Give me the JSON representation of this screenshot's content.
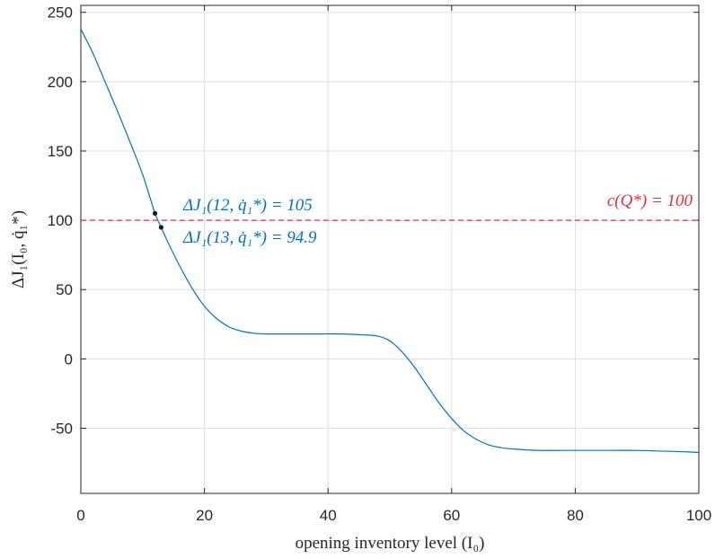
{
  "chart_data": {
    "type": "line",
    "title": "",
    "xlabel": "opening inventory level (I₀)",
    "ylabel": "ΔJ₁(I₀, q̇₁*)",
    "xlim": [
      0,
      100
    ],
    "ylim": [
      -97,
      255
    ],
    "xticks": [
      0,
      20,
      40,
      60,
      80,
      100
    ],
    "yticks": [
      -50,
      0,
      50,
      100,
      150,
      200,
      250
    ],
    "xtick_labels": [
      "0",
      "20",
      "40",
      "60",
      "80",
      "100"
    ],
    "ytick_labels": [
      "-50",
      "0",
      "50",
      "100",
      "150",
      "200",
      "250"
    ],
    "grid": true,
    "series": [
      {
        "color": "#0072bd",
        "x": [
          0,
          2,
          4,
          6,
          8,
          10,
          12,
          13,
          14,
          16,
          18,
          20,
          22,
          24,
          26,
          28,
          30,
          34,
          38,
          42,
          45,
          48,
          50,
          52,
          54,
          56,
          58,
          60,
          62,
          64,
          66,
          68,
          70,
          74,
          78,
          82,
          86,
          90,
          94,
          98,
          100
        ],
        "y": [
          238,
          220,
          199,
          178,
          156,
          133,
          105,
          94.9,
          85,
          67,
          51,
          38,
          29,
          23,
          20,
          18.5,
          18,
          18,
          18,
          18,
          17.5,
          16.5,
          13,
          5,
          -6,
          -19,
          -32,
          -43,
          -52,
          -58,
          -62,
          -64,
          -65,
          -66,
          -66,
          -66,
          -66,
          -66,
          -66.5,
          -67,
          -67.5
        ]
      }
    ],
    "reference_line": {
      "y": 100,
      "color": "#e0323c",
      "style": "dashed",
      "label": "c(Q*) = 100"
    },
    "markers": [
      {
        "x": 12,
        "y": 105,
        "label": "ΔJ₁(12, q̇₁*) = 105"
      },
      {
        "x": 13,
        "y": 94.9,
        "label": "ΔJ₁(13, q̇₁*) = 94.9"
      }
    ],
    "colors": {
      "curve": "#0072bd",
      "reference": "#e0323c",
      "marker": "#1a1a1a",
      "grid": "#dedede",
      "axis": "#262626"
    }
  }
}
